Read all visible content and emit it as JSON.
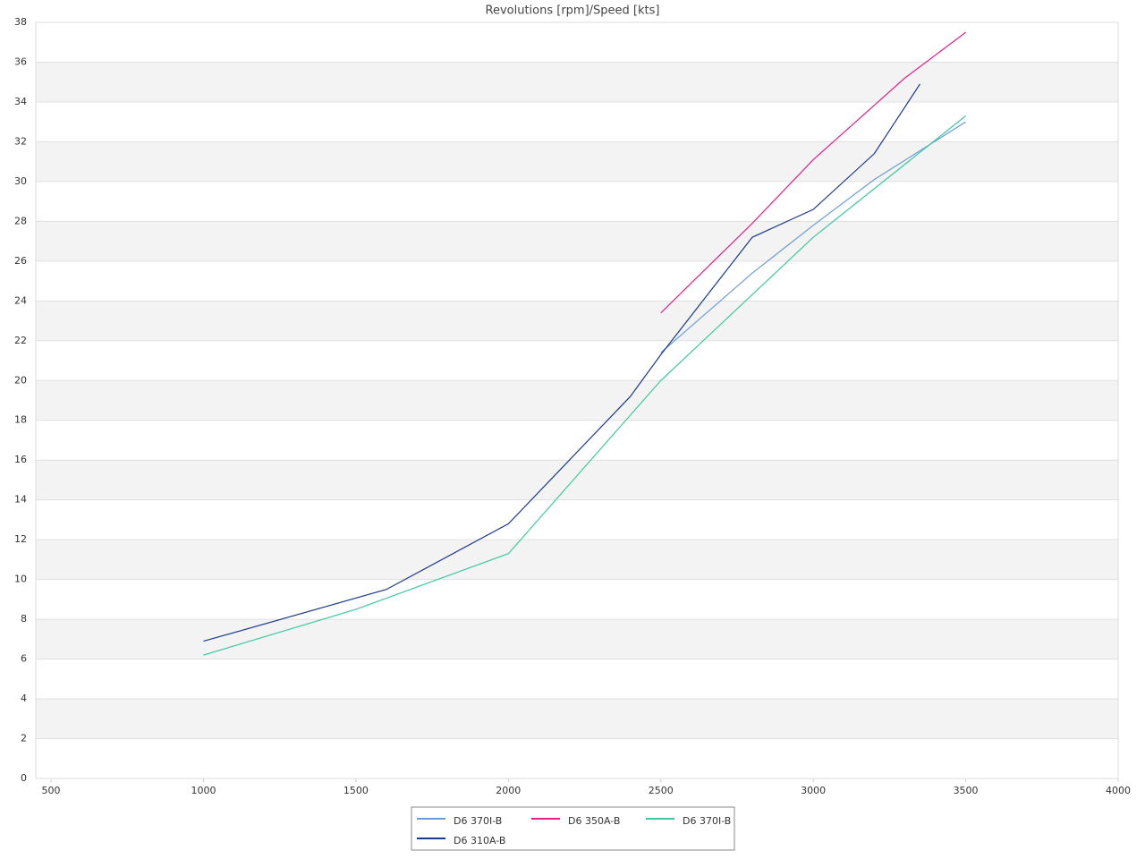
{
  "chart_data": {
    "type": "line",
    "title": "Revolutions [rpm]/Speed [kts]",
    "xlim": [
      450,
      4000
    ],
    "xticks": [
      500,
      1000,
      1500,
      2000,
      2500,
      3000,
      3500,
      4000
    ],
    "ylim": [
      0,
      38
    ],
    "yticks": [
      0,
      2,
      4,
      6,
      8,
      10,
      12,
      14,
      16,
      18,
      20,
      22,
      24,
      26,
      28,
      30,
      32,
      34,
      36,
      38
    ],
    "grid": true,
    "legend": "bottom",
    "series": [
      {
        "name": "D6 370I-B",
        "color": "#6a9bd8",
        "x": [
          2500,
          2800,
          3000,
          3200,
          3500
        ],
        "values": [
          21.4,
          25.4,
          27.8,
          30.1,
          33.0
        ]
      },
      {
        "name": "D6 350A-B",
        "color": "#e0218a",
        "x": [
          2500,
          2800,
          3000,
          3300,
          3500
        ],
        "values": [
          23.4,
          27.9,
          31.1,
          35.2,
          37.5
        ]
      },
      {
        "name": "D6 370I-B",
        "color": "#3cc8a0",
        "x": [
          1000,
          1500,
          2000,
          2500,
          3000,
          3500
        ],
        "values": [
          6.2,
          8.5,
          11.3,
          20.0,
          27.2,
          33.3
        ]
      },
      {
        "name": "D6 310A-B",
        "color": "#1a3a8a",
        "x": [
          1000,
          1600,
          2000,
          2400,
          2500,
          2800,
          3000,
          3200,
          3350
        ],
        "values": [
          6.9,
          9.5,
          12.8,
          19.2,
          21.3,
          27.2,
          28.6,
          31.4,
          34.9
        ]
      }
    ]
  }
}
